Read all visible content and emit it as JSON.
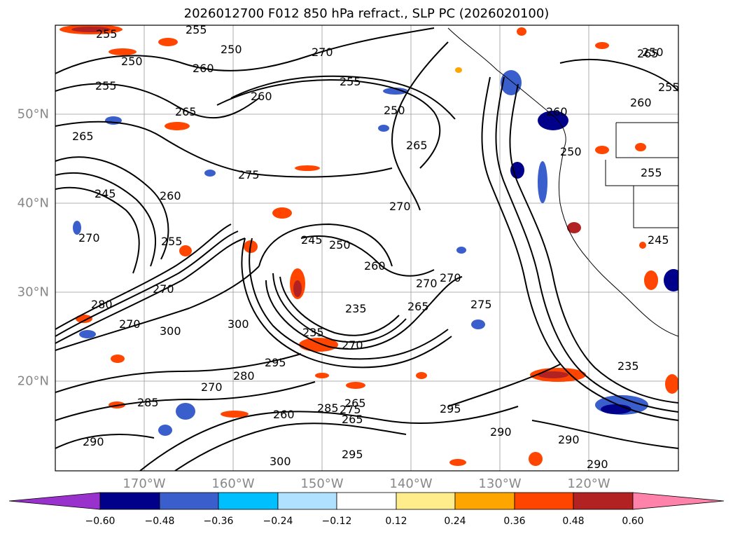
{
  "title": "2026012700 F012 850 hPa refract., SLP PC (2026020100)",
  "map": {
    "lat_labels": [
      "50°N",
      "40°N",
      "30°N",
      "20°N"
    ],
    "lon_labels": [
      "170°W",
      "160°W",
      "150°W",
      "140°W",
      "130°W",
      "120°W"
    ],
    "contour_labels": [
      "255",
      "255",
      "250",
      "250",
      "255",
      "260",
      "270",
      "265",
      "265",
      "260",
      "255",
      "250",
      "265",
      "275",
      "270",
      "245",
      "260",
      "270",
      "255",
      "245",
      "250",
      "260",
      "270",
      "270",
      "265",
      "270",
      "275",
      "280",
      "270",
      "235",
      "235",
      "300",
      "300",
      "270",
      "295",
      "280",
      "270",
      "285",
      "285",
      "275",
      "265",
      "265",
      "260",
      "300",
      "295",
      "290",
      "295",
      "290",
      "290",
      "290",
      "235",
      "250",
      "250",
      "255",
      "260",
      "265",
      "260",
      "245",
      "255"
    ]
  },
  "colorbar": {
    "tick_labels": [
      "−0.60",
      "−0.48",
      "−0.36",
      "−0.24",
      "−0.12",
      "0.12",
      "0.24",
      "0.36",
      "0.48",
      "0.60"
    ],
    "colors": [
      "#9932cc",
      "#00008b",
      "#3a5fcd",
      "#00bfff",
      "#b0e2ff",
      "#ffffff",
      "#ffec8b",
      "#ffa500",
      "#ff4500",
      "#b22222",
      "#ff82ab"
    ]
  }
}
